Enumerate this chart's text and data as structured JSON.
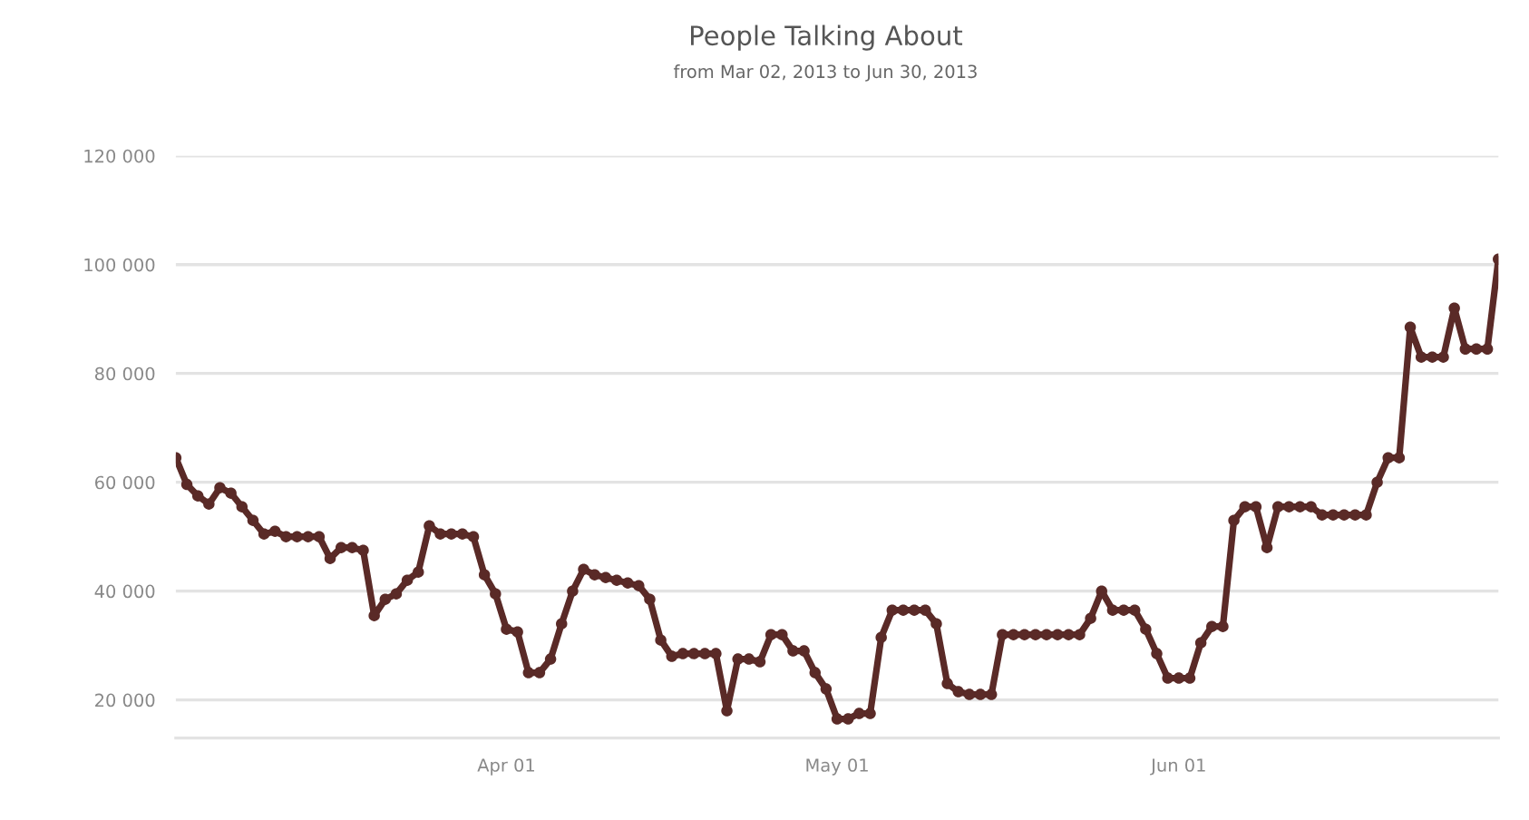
{
  "chart_data": {
    "type": "line",
    "title": "People Talking About",
    "subtitle": "from Mar 02, 2013 to Jun 30, 2013",
    "x": [
      "2013-03-02",
      "2013-03-03",
      "2013-03-04",
      "2013-03-05",
      "2013-03-06",
      "2013-03-07",
      "2013-03-08",
      "2013-03-09",
      "2013-03-10",
      "2013-03-11",
      "2013-03-12",
      "2013-03-13",
      "2013-03-14",
      "2013-03-15",
      "2013-03-16",
      "2013-03-17",
      "2013-03-18",
      "2013-03-19",
      "2013-03-20",
      "2013-03-21",
      "2013-03-22",
      "2013-03-23",
      "2013-03-24",
      "2013-03-25",
      "2013-03-26",
      "2013-03-27",
      "2013-03-28",
      "2013-03-29",
      "2013-03-30",
      "2013-03-31",
      "2013-04-01",
      "2013-04-02",
      "2013-04-03",
      "2013-04-04",
      "2013-04-05",
      "2013-04-06",
      "2013-04-07",
      "2013-04-08",
      "2013-04-09",
      "2013-04-10",
      "2013-04-11",
      "2013-04-12",
      "2013-04-13",
      "2013-04-14",
      "2013-04-15",
      "2013-04-16",
      "2013-04-17",
      "2013-04-18",
      "2013-04-19",
      "2013-04-20",
      "2013-04-21",
      "2013-04-22",
      "2013-04-23",
      "2013-04-24",
      "2013-04-25",
      "2013-04-26",
      "2013-04-27",
      "2013-04-28",
      "2013-04-29",
      "2013-04-30",
      "2013-05-01",
      "2013-05-02",
      "2013-05-03",
      "2013-05-04",
      "2013-05-05",
      "2013-05-06",
      "2013-05-07",
      "2013-05-08",
      "2013-05-09",
      "2013-05-10",
      "2013-05-11",
      "2013-05-12",
      "2013-05-13",
      "2013-05-14",
      "2013-05-15",
      "2013-05-16",
      "2013-05-17",
      "2013-05-18",
      "2013-05-19",
      "2013-05-20",
      "2013-05-21",
      "2013-05-22",
      "2013-05-23",
      "2013-05-24",
      "2013-05-25",
      "2013-05-26",
      "2013-05-27",
      "2013-05-28",
      "2013-05-29",
      "2013-05-30",
      "2013-05-31",
      "2013-06-01",
      "2013-06-02",
      "2013-06-03",
      "2013-06-04",
      "2013-06-05",
      "2013-06-06",
      "2013-06-07",
      "2013-06-08",
      "2013-06-09",
      "2013-06-10",
      "2013-06-11",
      "2013-06-12",
      "2013-06-13",
      "2013-06-14",
      "2013-06-15",
      "2013-06-16",
      "2013-06-17",
      "2013-06-18",
      "2013-06-19",
      "2013-06-20",
      "2013-06-21",
      "2013-06-22",
      "2013-06-23",
      "2013-06-24",
      "2013-06-25",
      "2013-06-26",
      "2013-06-27",
      "2013-06-28",
      "2013-06-29",
      "2013-06-30"
    ],
    "series": [
      {
        "color": "#5a2a27",
        "values": [
          64500,
          59600,
          57500,
          56000,
          59000,
          58000,
          55500,
          53000,
          50500,
          51000,
          50000,
          50000,
          50000,
          50000,
          46000,
          48000,
          48000,
          47500,
          35500,
          38500,
          39500,
          42000,
          43500,
          52000,
          50500,
          50500,
          50500,
          50000,
          43000,
          39500,
          33000,
          32500,
          25000,
          25000,
          27500,
          34000,
          40000,
          44000,
          43000,
          42500,
          42000,
          41500,
          41000,
          38500,
          31000,
          28000,
          28500,
          28500,
          28500,
          28500,
          18000,
          27500,
          27500,
          27000,
          32000,
          32000,
          29000,
          29000,
          25000,
          22000,
          16500,
          16500,
          17500,
          17500,
          31500,
          36500,
          36500,
          36500,
          36500,
          34000,
          23000,
          21500,
          21000,
          21000,
          21000,
          32000,
          32000,
          32000,
          32000,
          32000,
          32000,
          32000,
          32000,
          35000,
          40000,
          36500,
          36500,
          36500,
          33000,
          28500,
          24000,
          24000,
          24000,
          30500,
          33500,
          33500,
          53000,
          55500,
          55500,
          48000,
          55500,
          55500,
          55500,
          55500,
          54000,
          54000,
          54000,
          54000,
          54000,
          60000,
          64500,
          64500,
          88500,
          83000,
          83000,
          83000,
          92000,
          84500,
          84500,
          84500,
          101000
        ]
      }
    ],
    "xlim": [
      "2013-03-02",
      "2013-06-30"
    ],
    "ylim": [
      13000,
      120000
    ],
    "xticks": [
      {
        "value": "2013-04-01",
        "label": "Apr 01"
      },
      {
        "value": "2013-05-01",
        "label": "May 01"
      },
      {
        "value": "2013-06-01",
        "label": "Jun 01"
      }
    ],
    "yticks": [
      {
        "value": 20000,
        "label": "20 000"
      },
      {
        "value": 40000,
        "label": "40 000"
      },
      {
        "value": 60000,
        "label": "60 000"
      },
      {
        "value": 80000,
        "label": "80 000"
      },
      {
        "value": 100000,
        "label": "100 000"
      },
      {
        "value": 120000,
        "label": "120 000"
      }
    ],
    "grid": "y",
    "marker": "circle",
    "line_style": "solid",
    "legend": false
  }
}
